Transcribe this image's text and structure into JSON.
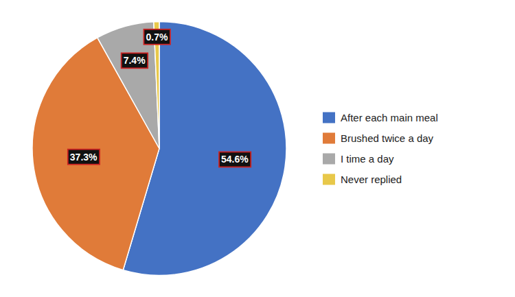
{
  "chart_data": {
    "type": "pie",
    "categories": [
      "After each main meal",
      "Brushed twice a day",
      "I time a day",
      "Never replied"
    ],
    "values": [
      54.6,
      37.3,
      7.4,
      0.7
    ],
    "value_labels": [
      "54.6%",
      "37.3%",
      "7.4%",
      "0.7%"
    ],
    "colors": [
      "#4472C4",
      "#E07B39",
      "#A9A9A9",
      "#E8C84A"
    ],
    "data_labels": true,
    "legend": "right"
  }
}
